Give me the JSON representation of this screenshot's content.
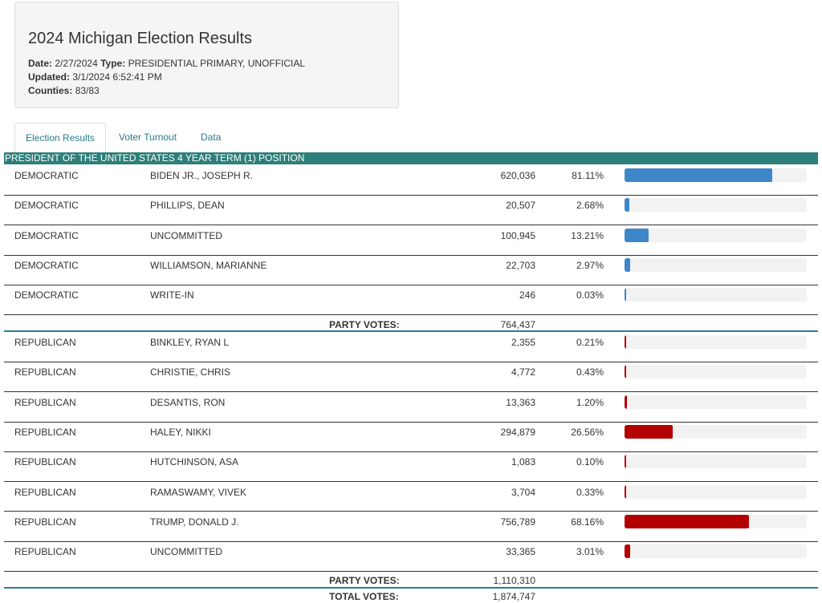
{
  "header": {
    "title": "2024 Michigan Election Results",
    "date_label": "Date:",
    "date_value": "2/27/2024",
    "type_label": "Type:",
    "type_value": "PRESIDENTIAL PRIMARY, UNOFFICIAL",
    "updated_label": "Updated:",
    "updated_value": "3/1/2024 6:52:41 PM",
    "counties_label": "Counties:",
    "counties_value": "83/83"
  },
  "tabs": [
    {
      "label": "Election Results",
      "active": true
    },
    {
      "label": "Voter Turnout",
      "active": false
    },
    {
      "label": "Data",
      "active": false
    }
  ],
  "race": {
    "title": "PRESIDENT OF THE UNITED STATES 4 YEAR TERM (1) POSITION"
  },
  "democratic": [
    {
      "party": "DEMOCRATIC",
      "candidate": "BIDEN JR., JOSEPH R.",
      "votes": "620,036",
      "percent": "81.11%",
      "share": 81.11
    },
    {
      "party": "DEMOCRATIC",
      "candidate": "PHILLIPS, DEAN",
      "votes": "20,507",
      "percent": "2.68%",
      "share": 2.68
    },
    {
      "party": "DEMOCRATIC",
      "candidate": "UNCOMMITTED",
      "votes": "100,945",
      "percent": "13.21%",
      "share": 13.21
    },
    {
      "party": "DEMOCRATIC",
      "candidate": "WILLIAMSON, MARIANNE",
      "votes": "22,703",
      "percent": "2.97%",
      "share": 2.97
    },
    {
      "party": "DEMOCRATIC",
      "candidate": "WRITE-IN",
      "votes": "246",
      "percent": "0.03%",
      "share": 0.03
    }
  ],
  "democratic_total": {
    "label": "PARTY VOTES:",
    "value": "764,437"
  },
  "republican": [
    {
      "party": "REPUBLICAN",
      "candidate": "BINKLEY, RYAN L",
      "votes": "2,355",
      "percent": "0.21%",
      "share": 0.21
    },
    {
      "party": "REPUBLICAN",
      "candidate": "CHRISTIE, CHRIS",
      "votes": "4,772",
      "percent": "0.43%",
      "share": 0.43
    },
    {
      "party": "REPUBLICAN",
      "candidate": "DESANTIS, RON",
      "votes": "13,363",
      "percent": "1.20%",
      "share": 1.2
    },
    {
      "party": "REPUBLICAN",
      "candidate": "HALEY, NIKKI",
      "votes": "294,879",
      "percent": "26.56%",
      "share": 26.56
    },
    {
      "party": "REPUBLICAN",
      "candidate": "HUTCHINSON, ASA",
      "votes": "1,083",
      "percent": "0.10%",
      "share": 0.1
    },
    {
      "party": "REPUBLICAN",
      "candidate": "RAMASWAMY, VIVEK",
      "votes": "3,704",
      "percent": "0.33%",
      "share": 0.33
    },
    {
      "party": "REPUBLICAN",
      "candidate": "TRUMP, DONALD J.",
      "votes": "756,789",
      "percent": "68.16%",
      "share": 68.16
    },
    {
      "party": "REPUBLICAN",
      "candidate": "UNCOMMITTED",
      "votes": "33,365",
      "percent": "3.01%",
      "share": 3.01
    }
  ],
  "republican_total": {
    "label": "PARTY VOTES:",
    "value": "1,110,310"
  },
  "grand_total": {
    "label": "TOTAL VOTES:",
    "value": "1,874,747"
  },
  "colors": {
    "democratic": "#3d87c9",
    "republican": "#b30000",
    "header": "#2e7f7a"
  }
}
